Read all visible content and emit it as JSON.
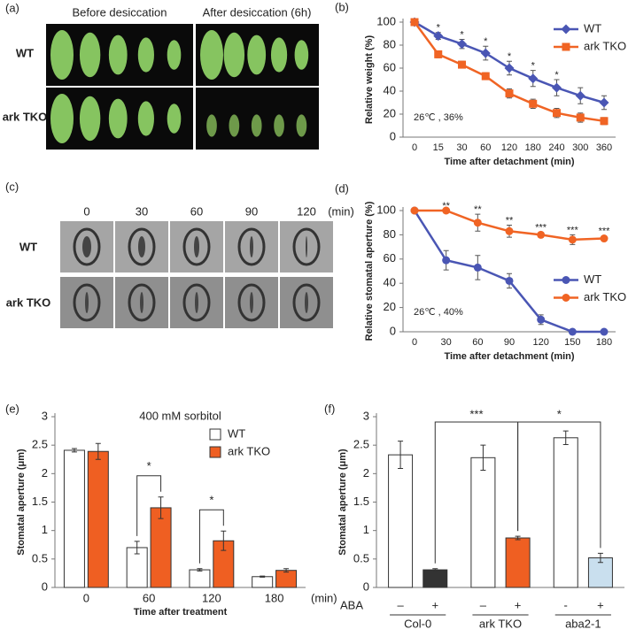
{
  "panel_labels": [
    "(a)",
    "(b)",
    "(c)",
    "(d)",
    "(e)",
    "(f)"
  ],
  "panel_a": {
    "columns": [
      "Before desiccation",
      "After desiccation (6h)"
    ],
    "rows": [
      "WT",
      "ark TKO"
    ]
  },
  "panel_c": {
    "times": [
      "0",
      "30",
      "60",
      "90",
      "120"
    ],
    "unit": "(min)",
    "rows": [
      "WT",
      "ark TKO"
    ]
  },
  "chart_data": [
    {
      "type": "line",
      "y_label": "Relative weight (%)",
      "x_label": "Time after detachment (min)",
      "annotation": "26℃ , 36%",
      "categories": [
        "0",
        "15",
        "30",
        "60",
        "120",
        "180",
        "240",
        "300",
        "360"
      ],
      "series": [
        {
          "name": "WT",
          "color": "#4a56b4",
          "marker": "diamond",
          "values": [
            100,
            88,
            81,
            73,
            60,
            51,
            43,
            36,
            30
          ],
          "errors": [
            0,
            3,
            4,
            6,
            6,
            7,
            7,
            7,
            6
          ]
        },
        {
          "name": "ark TKO",
          "color": "#f06424",
          "marker": "square",
          "values": [
            100,
            72,
            63,
            53,
            38,
            29,
            21,
            17,
            14
          ],
          "errors": [
            0,
            3,
            3,
            3,
            4,
            4,
            4,
            4,
            3
          ]
        }
      ],
      "significance": [
        null,
        "*",
        "*",
        "*",
        "*",
        "*",
        "*",
        null,
        null
      ],
      "ylim": [
        0,
        100
      ],
      "yticks": [
        0,
        20,
        40,
        60,
        80,
        100
      ],
      "legend": "upper right"
    },
    {
      "type": "line",
      "y_label": "Relative  stomatal aperture (%)",
      "x_label": "Time after detachment (min)",
      "annotation": "26℃ , 40%",
      "categories": [
        "0",
        "30",
        "60",
        "90",
        "120",
        "150",
        "180"
      ],
      "series": [
        {
          "name": "WT",
          "color": "#4a56b4",
          "marker": "circle",
          "values": [
            100,
            59,
            53,
            42,
            10,
            0,
            0
          ],
          "errors": [
            0,
            8,
            10,
            6,
            4,
            0,
            0
          ]
        },
        {
          "name": "ark TKO",
          "color": "#f06424",
          "marker": "circle",
          "values": [
            100,
            100,
            90,
            83,
            80,
            76,
            77
          ],
          "errors": [
            0,
            0,
            7,
            5,
            2,
            4,
            2
          ]
        }
      ],
      "significance": [
        null,
        "**",
        "**",
        "**",
        "***",
        "***",
        "***"
      ],
      "ylim": [
        0,
        100
      ],
      "yticks": [
        0,
        20,
        40,
        60,
        80,
        100
      ],
      "legend": "center right"
    },
    {
      "type": "bar",
      "title": "400 mM sorbitol",
      "y_label": "Stomatal aperture (μm)",
      "x_label": "Time after treatment",
      "x_unit": "(min)",
      "categories": [
        "0",
        "60",
        "120",
        "180"
      ],
      "series": [
        {
          "name": "WT",
          "color": "#ffffff",
          "values": [
            2.41,
            0.7,
            0.31,
            0.19
          ],
          "errors": [
            0.03,
            0.11,
            0.02,
            0.01
          ]
        },
        {
          "name": "ark TKO",
          "color": "#ef5f22",
          "values": [
            2.39,
            1.4,
            0.82,
            0.3
          ],
          "errors": [
            0.14,
            0.19,
            0.17,
            0.03
          ]
        }
      ],
      "significance": [
        null,
        "*",
        "*",
        null
      ],
      "ylim": [
        0,
        3
      ],
      "yticks": [
        0,
        0.5,
        1,
        1.5,
        2,
        2.5,
        3
      ],
      "legend": "upper right"
    },
    {
      "type": "bar",
      "y_label": "Stomatal aperture (μm)",
      "row_label": "ABA",
      "categories": [
        "–",
        "+",
        "–",
        "+",
        "-",
        "+"
      ],
      "groups": [
        "Col-0",
        "ark TKO",
        "aba2-1"
      ],
      "series": [
        {
          "colors": [
            "#ffffff",
            "#333333",
            "#ffffff",
            "#ef5f22",
            "#ffffff",
            "#c9dfee"
          ],
          "values": [
            2.33,
            0.31,
            2.28,
            0.87,
            2.63,
            0.52
          ],
          "errors": [
            0.24,
            0.02,
            0.22,
            0.03,
            0.12,
            0.08
          ]
        }
      ],
      "significance": [
        "***",
        "*"
      ],
      "ylim": [
        0,
        3
      ],
      "yticks": [
        0,
        0.5,
        1,
        1.5,
        2,
        2.5,
        3
      ]
    }
  ]
}
